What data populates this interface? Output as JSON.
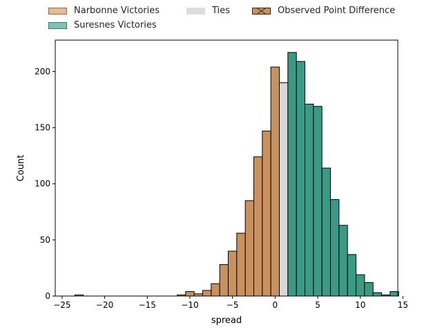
{
  "legend": {
    "narbonne_label": "Narbonne Victories",
    "suresnes_label": "Suresnes Victories",
    "ties_label": "Ties",
    "observed_label": "Observed Point Difference"
  },
  "colors": {
    "narbonne": "#c8915e",
    "suresnes": "#3b9a85",
    "ties": "#d8d8d8",
    "edge": "#000000"
  },
  "chart_data": {
    "type": "bar",
    "title": "",
    "xlabel": "spread",
    "ylabel": "Count",
    "xlim": [
      -25.8,
      14.4
    ],
    "ylim": [
      0,
      228
    ],
    "xticks": [
      -25,
      -20,
      -15,
      -10,
      -5,
      0,
      5,
      10,
      15
    ],
    "yticks": [
      0,
      50,
      100,
      150,
      200
    ],
    "bin_width": 1,
    "grid": false,
    "legend_position": "top, above plot",
    "series": [
      {
        "name": "Narbonne Victories",
        "bins": [
          {
            "left": -23.5,
            "count": 1
          },
          {
            "left": -11.5,
            "count": 1
          },
          {
            "left": -10.5,
            "count": 4
          },
          {
            "left": -9.5,
            "count": 2
          },
          {
            "left": -8.5,
            "count": 5
          },
          {
            "left": -7.5,
            "count": 11
          },
          {
            "left": -6.5,
            "count": 28
          },
          {
            "left": -5.5,
            "count": 40
          },
          {
            "left": -4.5,
            "count": 56
          },
          {
            "left": -3.5,
            "count": 85
          },
          {
            "left": -2.5,
            "count": 124
          },
          {
            "left": -1.5,
            "count": 147
          },
          {
            "left": -0.5,
            "count": 204
          }
        ]
      },
      {
        "name": "Ties",
        "bins": [
          {
            "left": 0.5,
            "count": 190
          }
        ]
      },
      {
        "name": "Suresnes Victories",
        "bins": [
          {
            "left": 1.5,
            "count": 217
          },
          {
            "left": 2.5,
            "count": 209
          },
          {
            "left": 3.5,
            "count": 171
          },
          {
            "left": 4.5,
            "count": 169
          },
          {
            "left": 5.5,
            "count": 114
          },
          {
            "left": 6.5,
            "count": 86
          },
          {
            "left": 7.5,
            "count": 63
          },
          {
            "left": 8.5,
            "count": 37
          },
          {
            "left": 9.5,
            "count": 19
          },
          {
            "left": 10.5,
            "count": 12
          },
          {
            "left": 11.5,
            "count": 3
          },
          {
            "left": 12.5,
            "count": 1
          },
          {
            "left": 13.5,
            "count": 4
          }
        ]
      }
    ]
  }
}
